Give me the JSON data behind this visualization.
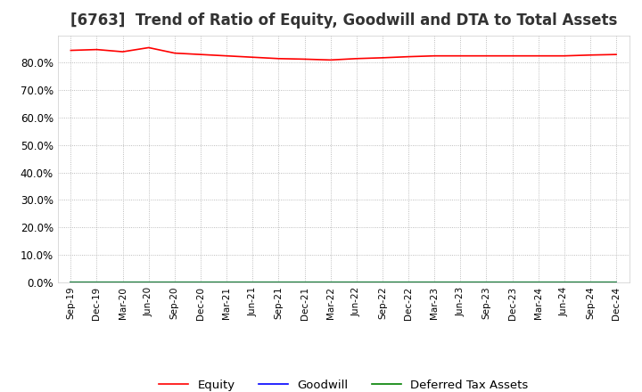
{
  "title": "[6763]  Trend of Ratio of Equity, Goodwill and DTA to Total Assets",
  "x_labels": [
    "Sep-19",
    "Dec-19",
    "Mar-20",
    "Jun-20",
    "Sep-20",
    "Dec-20",
    "Mar-21",
    "Jun-21",
    "Sep-21",
    "Dec-21",
    "Mar-22",
    "Jun-22",
    "Sep-22",
    "Dec-22",
    "Mar-23",
    "Jun-23",
    "Sep-23",
    "Dec-23",
    "Mar-24",
    "Jun-24",
    "Sep-24",
    "Dec-24"
  ],
  "equity": [
    0.845,
    0.848,
    0.84,
    0.855,
    0.835,
    0.83,
    0.825,
    0.82,
    0.815,
    0.813,
    0.81,
    0.815,
    0.818,
    0.822,
    0.825,
    0.825,
    0.825,
    0.825,
    0.825,
    0.825,
    0.828,
    0.83
  ],
  "goodwill": [
    0.0,
    0.0,
    0.0,
    0.0,
    0.0,
    0.0,
    0.0,
    0.0,
    0.0,
    0.0,
    0.0,
    0.0,
    0.0,
    0.0,
    0.0,
    0.0,
    0.0,
    0.0,
    0.0,
    0.0,
    0.0,
    0.0
  ],
  "dta": [
    0.0,
    0.0,
    0.0,
    0.0,
    0.0,
    0.0,
    0.0,
    0.0,
    0.0,
    0.0,
    0.0,
    0.0,
    0.0,
    0.0,
    0.0,
    0.0,
    0.0,
    0.0,
    0.0,
    0.0,
    0.0,
    0.0
  ],
  "equity_color": "#ff0000",
  "goodwill_color": "#0000ff",
  "dta_color": "#008000",
  "ylim": [
    0.0,
    0.9
  ],
  "yticks": [
    0.0,
    0.1,
    0.2,
    0.3,
    0.4,
    0.5,
    0.6,
    0.7,
    0.8
  ],
  "background_color": "#ffffff",
  "grid_color": "#aaaaaa",
  "title_fontsize": 12
}
